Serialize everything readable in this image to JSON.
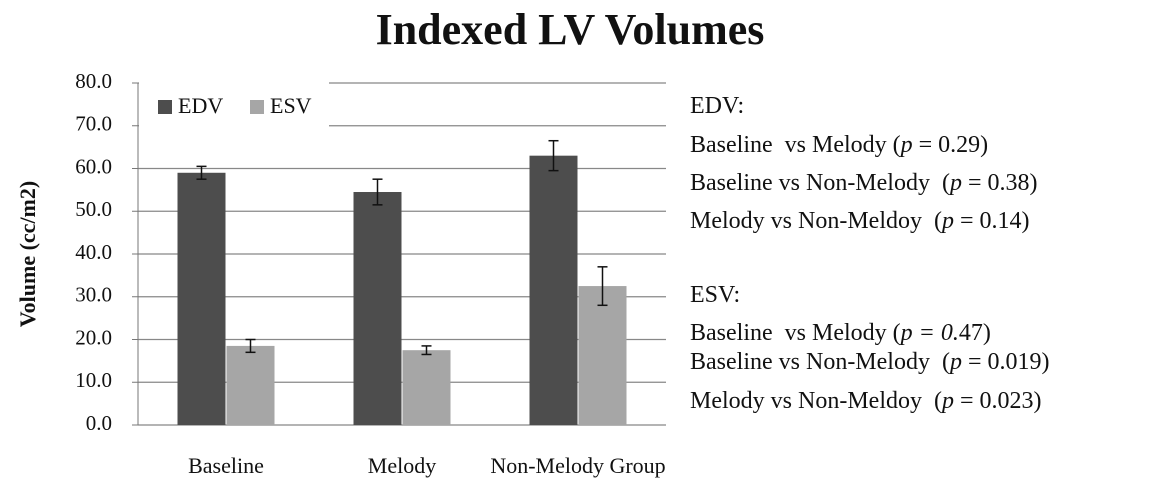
{
  "chart_data": {
    "type": "bar",
    "title": "Indexed LV Volumes",
    "y_label": "Volume (cc/m2)",
    "categories": [
      "Baseline",
      "Melody",
      "Non-Melody Group"
    ],
    "series": [
      {
        "name": "EDV",
        "color": "#4d4d4d",
        "values": [
          59,
          54.5,
          63
        ],
        "errors": [
          1.5,
          3,
          3.5
        ]
      },
      {
        "name": "ESV",
        "color": "#a6a6a6",
        "values": [
          18.5,
          17.5,
          32.5
        ],
        "errors": [
          1.5,
          1,
          4.5
        ]
      }
    ],
    "ylim": [
      0,
      80
    ],
    "yticks": [
      {
        "value": 0,
        "label": "0.0"
      },
      {
        "value": 10,
        "label": "10.0"
      },
      {
        "value": 20,
        "label": "20.0"
      },
      {
        "value": 30,
        "label": "30.0"
      },
      {
        "value": 40,
        "label": "40.0"
      },
      {
        "value": 50,
        "label": "50.0"
      },
      {
        "value": 60,
        "label": "60.0"
      },
      {
        "value": 70,
        "label": "70.0"
      },
      {
        "value": 80,
        "label": "80.0"
      }
    ],
    "grid": true,
    "legend": "top-left",
    "annotations": [
      {
        "runs": [
          {
            "text": "EDV:",
            "italic": false
          }
        ]
      },
      {
        "runs": [
          {
            "text": "Baseline  vs Melody (",
            "italic": false
          },
          {
            "text": "p",
            "italic": true
          },
          {
            "text": " = 0.29)",
            "italic": false
          }
        ]
      },
      {
        "runs": [
          {
            "text": "Baseline vs Non-Melody  (",
            "italic": false
          },
          {
            "text": "p",
            "italic": true
          },
          {
            "text": " = 0.38)",
            "italic": false
          }
        ]
      },
      {
        "runs": [
          {
            "text": "Melody vs Non-Meldoy  (",
            "italic": false
          },
          {
            "text": "p",
            "italic": true
          },
          {
            "text": " = 0.14)",
            "italic": false
          }
        ]
      },
      {
        "runs": [
          {
            "text": "ESV:",
            "italic": false
          }
        ]
      },
      {
        "runs": [
          {
            "text": "Baseline  vs Melody (",
            "italic": false
          },
          {
            "text": "p = 0.",
            "italic": true
          },
          {
            "text": "47)",
            "italic": false
          }
        ]
      },
      {
        "runs": [
          {
            "text": "Baseline vs Non-Melody  (",
            "italic": false
          },
          {
            "text": "p",
            "italic": true
          },
          {
            "text": " = 0.019)",
            "italic": false
          }
        ]
      },
      {
        "runs": [
          {
            "text": "Melody vs Non-Meldoy  (",
            "italic": false
          },
          {
            "text": "p",
            "italic": true
          },
          {
            "text": " = 0.023)",
            "italic": false
          }
        ]
      }
    ]
  }
}
